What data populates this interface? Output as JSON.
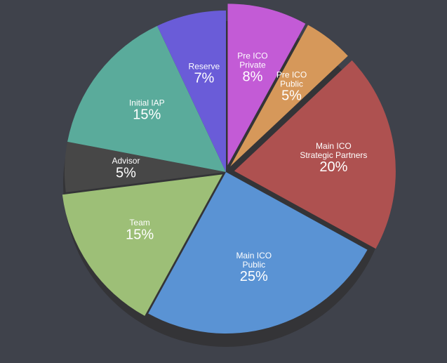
{
  "chart_data": {
    "type": "pie",
    "categories": [
      [
        "Pre ICO",
        "Private"
      ],
      [
        "Pre ICO",
        "Public"
      ],
      [
        "Main ICO",
        "Strategic Partners"
      ],
      [
        "Main ICO",
        "Public"
      ],
      [
        "Team"
      ],
      [
        "Advisor"
      ],
      [
        "Initial IAP"
      ],
      [
        "Reserve"
      ]
    ],
    "values": [
      8,
      5,
      20,
      25,
      15,
      5,
      15,
      7
    ],
    "value_labels": [
      "8%",
      "5%",
      "20%",
      "25%",
      "15%",
      "5%",
      "15%",
      "7%"
    ],
    "colors": [
      "#c35bd6",
      "#d6985a",
      "#ae5150",
      "#5a93d4",
      "#9dbf77",
      "#474747",
      "#5aab9b",
      "#6a5cd8"
    ]
  }
}
